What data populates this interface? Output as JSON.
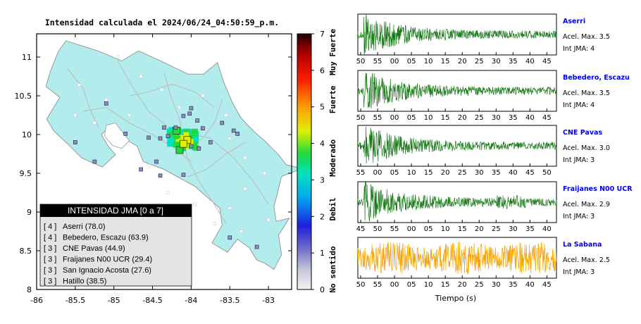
{
  "title": "Intensidad calculada el 2024/06/24_04:50:59_p.m.",
  "colors": {
    "land": "#b2ecec",
    "border": "#9a9a9a",
    "wave_green": "#1a7a1a",
    "wave_orange": "#f5a300",
    "station_label": "#0000ee"
  },
  "map": {
    "x_ticks": [
      "-86",
      "-85.5",
      "-85",
      "-84.5",
      "-84",
      "-83.5",
      "-83"
    ],
    "y_ticks": [
      "11",
      "10.5",
      "10",
      "9.5",
      "9",
      "8.5",
      "8"
    ],
    "xlim": [
      -86,
      -82.7
    ],
    "ylim": [
      8,
      11.3
    ]
  },
  "colorbar": {
    "ticks": [
      "0",
      "1",
      "2",
      "3",
      "4",
      "5",
      "6",
      "7"
    ],
    "labels": [
      "No sentido",
      "Debil",
      "Moderado",
      "Fuerte",
      "Muy Fuerte"
    ],
    "range": [
      0,
      7
    ]
  },
  "legend_box": {
    "title": "INTENSIDAD JMA [0 a 7]",
    "rows": [
      {
        "int": "[ 4 ]",
        "name": "Aserri (78.0)"
      },
      {
        "int": "[ 4 ]",
        "name": "Bebedero, Escazu (63.9)"
      },
      {
        "int": "[ 3 ]",
        "name": "CNE Pavas (44.9)"
      },
      {
        "int": "[ 3 ]",
        "name": "Fraijanes N00 UCR (29.4)"
      },
      {
        "int": "[ 3 ]",
        "name": "San Ignacio Acosta (27.6)"
      },
      {
        "int": "[ 3 ]",
        "name": "Hatillo (38.5)"
      }
    ]
  },
  "chart_data": {
    "type": "line",
    "xlabel": "Tiempo (s)",
    "panels": [
      {
        "station": "Aserri",
        "accel": "Acel. Max. 3.5",
        "jma": "Int JMA: 4",
        "color": "green",
        "envelope": "early",
        "ticks": [
          "50",
          "55",
          "00",
          "05",
          "10",
          "15",
          "20",
          "25",
          "30",
          "35",
          "40",
          "45"
        ]
      },
      {
        "station": "Bebedero, Escazu",
        "accel": "Acel. Max. 3.5",
        "jma": "Int JMA: 4",
        "color": "green",
        "envelope": "early",
        "ticks": [
          "50",
          "55",
          "00",
          "05",
          "10",
          "15",
          "20",
          "25",
          "30",
          "35",
          "40",
          "45"
        ]
      },
      {
        "station": "CNE Pavas",
        "accel": "Acel. Max. 3.0",
        "jma": "Int JMA: 3",
        "color": "green",
        "envelope": "early",
        "ticks": [
          "55",
          "00",
          "05",
          "10",
          "15",
          "20",
          "25",
          "30",
          "35",
          "40",
          "45",
          "50"
        ]
      },
      {
        "station": "Fraijanes N00 UCR",
        "accel": "Acel. Max. 2.9",
        "jma": "Int JMA: 3",
        "color": "green",
        "envelope": "early",
        "ticks": [
          "45",
          "50",
          "55",
          "00",
          "05",
          "10",
          "15",
          "20",
          "25",
          "30",
          "35",
          "40"
        ]
      },
      {
        "station": "La Sabana",
        "accel": "Acel. Max. 2.5",
        "jma": "Int JMA: 3",
        "color": "orange",
        "envelope": "uniform",
        "ticks": [
          "50",
          "55",
          "00",
          "05",
          "10",
          "15",
          "20",
          "25",
          "30",
          "35",
          "40",
          "45"
        ]
      }
    ]
  }
}
